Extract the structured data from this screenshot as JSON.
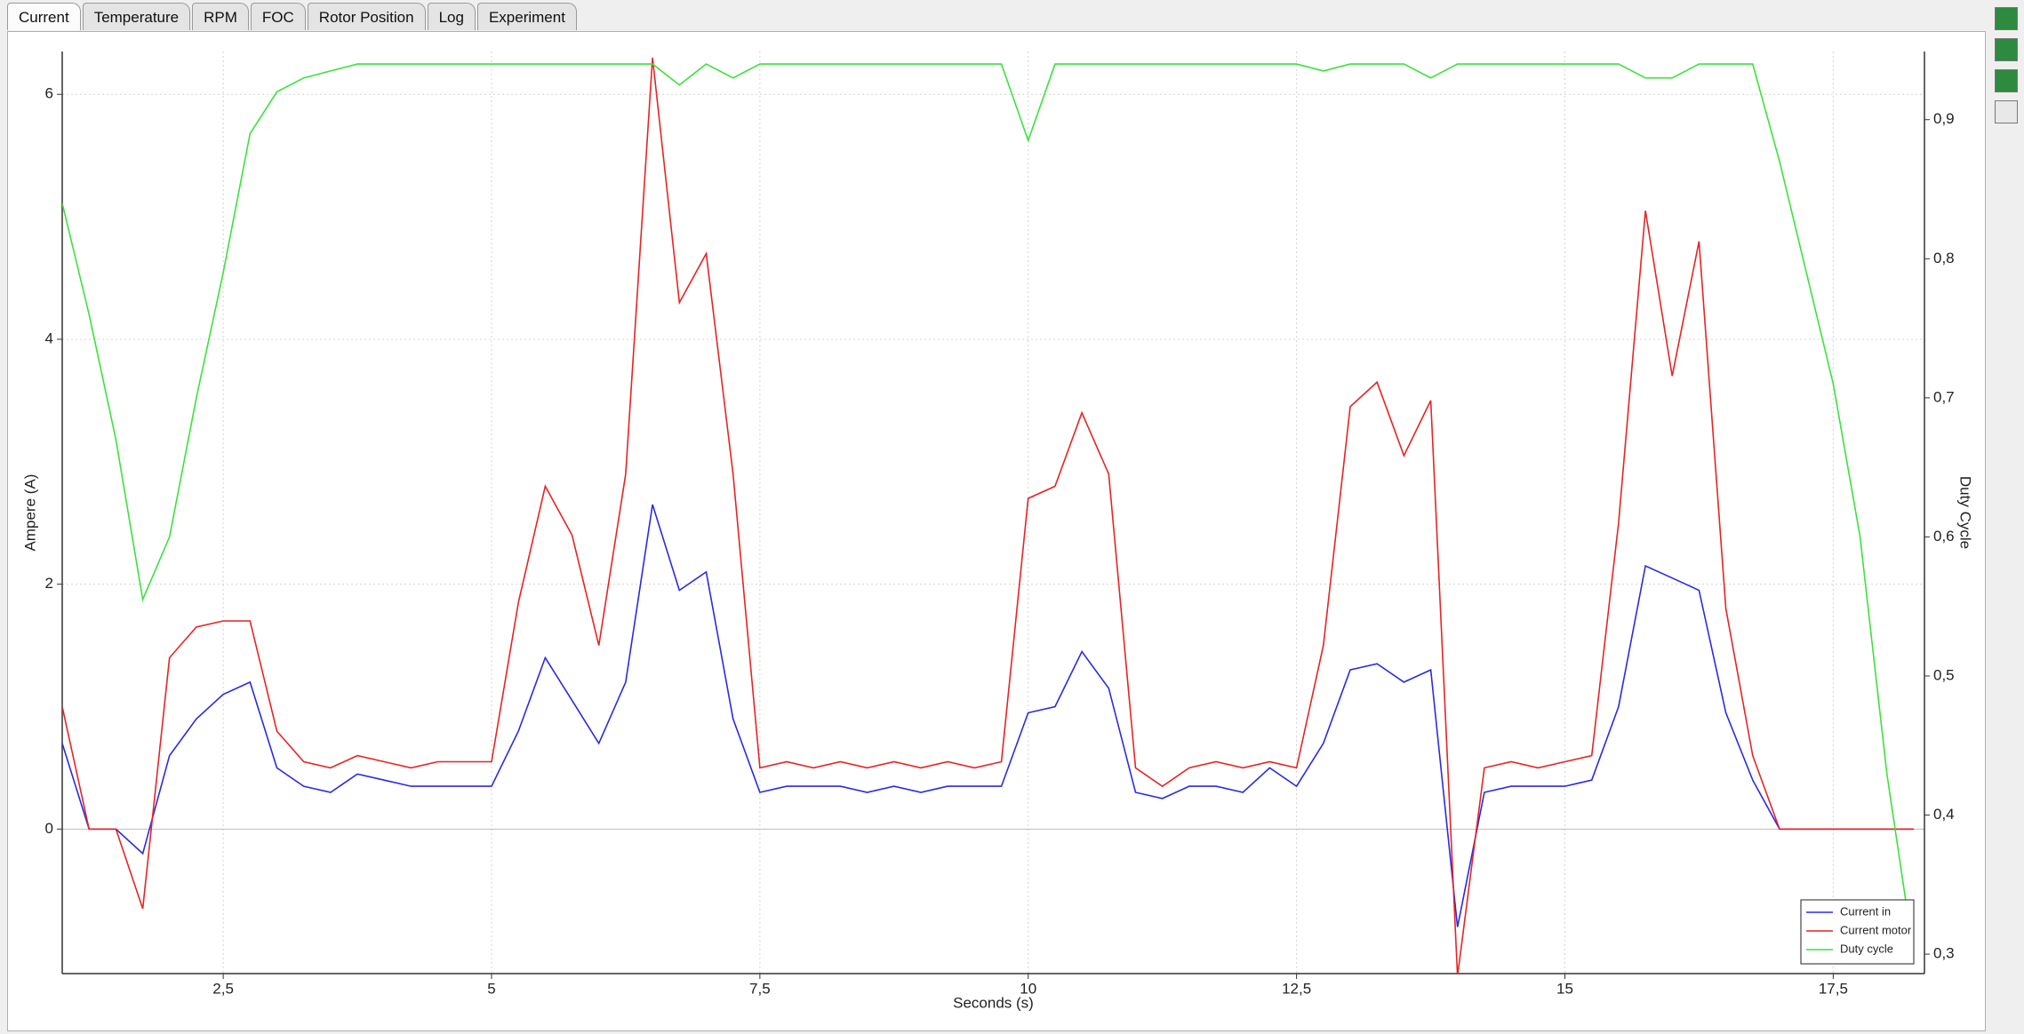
{
  "tabs": [
    "Current",
    "Temperature",
    "RPM",
    "FOC",
    "Rotor Position",
    "Log",
    "Experiment"
  ],
  "chart_data": {
    "type": "line",
    "x_label": "Seconds (s)",
    "y_label": "Ampere (A)",
    "y2_label": "Duty Cycle",
    "xlim": [
      1.0,
      18.35
    ],
    "ylim": [
      -1.18,
      6.35
    ],
    "y2lim": [
      0.286,
      0.949
    ],
    "xticks": [
      {
        "value": 2.5,
        "label": "2,5"
      },
      5,
      {
        "value": 7.5,
        "label": "7,5"
      },
      10,
      {
        "value": 12.5,
        "label": "12,5"
      },
      15,
      {
        "value": 17.5,
        "label": "17,5"
      }
    ],
    "yticks": [
      0,
      2,
      4,
      6
    ],
    "y2ticks": [
      {
        "value": 0.3,
        "label": "0,3"
      },
      {
        "value": 0.4,
        "label": "0,4"
      },
      {
        "value": 0.5,
        "label": "0,5"
      },
      {
        "value": 0.6,
        "label": "0,6"
      },
      {
        "value": 0.7,
        "label": "0,7"
      },
      {
        "value": 0.8,
        "label": "0,8"
      },
      {
        "value": 0.9,
        "label": "0,9"
      }
    ],
    "grid": true,
    "legend": "bottom-right",
    "x": [
      1.0,
      1.25,
      1.5,
      1.75,
      2.0,
      2.25,
      2.5,
      2.75,
      3.0,
      3.25,
      3.5,
      3.75,
      4.0,
      4.25,
      4.5,
      4.75,
      5.0,
      5.25,
      5.5,
      5.75,
      6.0,
      6.25,
      6.5,
      6.75,
      7.0,
      7.25,
      7.5,
      7.75,
      8.0,
      8.25,
      8.5,
      8.75,
      9.0,
      9.25,
      9.5,
      9.75,
      10.0,
      10.25,
      10.5,
      10.75,
      11.0,
      11.25,
      11.5,
      11.75,
      12.0,
      12.25,
      12.5,
      12.75,
      13.0,
      13.25,
      13.5,
      13.75,
      14.0,
      14.25,
      14.5,
      14.75,
      15.0,
      15.25,
      15.5,
      15.75,
      16.0,
      16.25,
      16.5,
      16.75,
      17.0,
      17.25,
      17.5,
      17.75,
      18.0,
      18.25
    ],
    "series": [
      {
        "name": "Current in",
        "color": "#2a2ae6",
        "values": [
          0.7,
          0,
          0,
          -0.2,
          0.6,
          0.9,
          1.1,
          1.2,
          0.5,
          0.35,
          0.3,
          0.45,
          0.4,
          0.35,
          0.35,
          0.35,
          0.35,
          0.8,
          1.4,
          1.05,
          0.7,
          1.2,
          2.65,
          1.95,
          2.1,
          0.9,
          0.3,
          0.35,
          0.35,
          0.35,
          0.3,
          0.35,
          0.3,
          0.35,
          0.35,
          0.35,
          0.95,
          1.0,
          1.45,
          1.15,
          0.3,
          0.25,
          0.35,
          0.35,
          0.3,
          0.5,
          0.35,
          0.7,
          1.3,
          1.35,
          1.2,
          1.3,
          -0.8,
          0.3,
          0.35,
          0.35,
          0.35,
          0.4,
          1.0,
          2.15,
          2.05,
          1.95,
          0.95,
          0.4,
          0,
          0,
          0,
          0,
          0,
          0
        ]
      },
      {
        "name": "Current motor",
        "color": "#e62424",
        "values": [
          1.0,
          0,
          0,
          -0.65,
          1.4,
          1.65,
          1.7,
          1.7,
          0.8,
          0.55,
          0.5,
          0.6,
          0.55,
          0.5,
          0.55,
          0.55,
          0.55,
          1.85,
          2.8,
          2.4,
          1.5,
          2.9,
          6.3,
          4.3,
          4.7,
          2.9,
          0.5,
          0.55,
          0.5,
          0.55,
          0.5,
          0.55,
          0.5,
          0.55,
          0.5,
          0.55,
          2.7,
          2.8,
          3.4,
          2.9,
          0.5,
          0.35,
          0.5,
          0.55,
          0.5,
          0.55,
          0.5,
          1.5,
          3.45,
          3.65,
          3.05,
          3.5,
          -1.2,
          0.5,
          0.55,
          0.5,
          0.55,
          0.6,
          2.5,
          5.05,
          3.7,
          4.8,
          1.8,
          0.6,
          0,
          0,
          0,
          0,
          0,
          0
        ]
      },
      {
        "name": "Duty cycle",
        "color": "#3ce23c",
        "axis": "y2",
        "values": [
          0.84,
          0.76,
          0.67,
          0.555,
          0.6,
          0.7,
          0.79,
          0.89,
          0.92,
          0.93,
          0.935,
          0.94,
          0.94,
          0.94,
          0.94,
          0.94,
          0.94,
          0.94,
          0.94,
          0.94,
          0.94,
          0.94,
          0.94,
          0.925,
          0.94,
          0.93,
          0.94,
          0.94,
          0.94,
          0.94,
          0.94,
          0.94,
          0.94,
          0.94,
          0.94,
          0.94,
          0.885,
          0.94,
          0.94,
          0.94,
          0.94,
          0.94,
          0.94,
          0.94,
          0.94,
          0.94,
          0.94,
          0.935,
          0.94,
          0.94,
          0.94,
          0.93,
          0.94,
          0.94,
          0.94,
          0.94,
          0.94,
          0.94,
          0.94,
          0.93,
          0.93,
          0.94,
          0.94,
          0.94,
          0.87,
          0.79,
          0.71,
          0.6,
          0.43,
          0.3
        ]
      }
    ]
  }
}
